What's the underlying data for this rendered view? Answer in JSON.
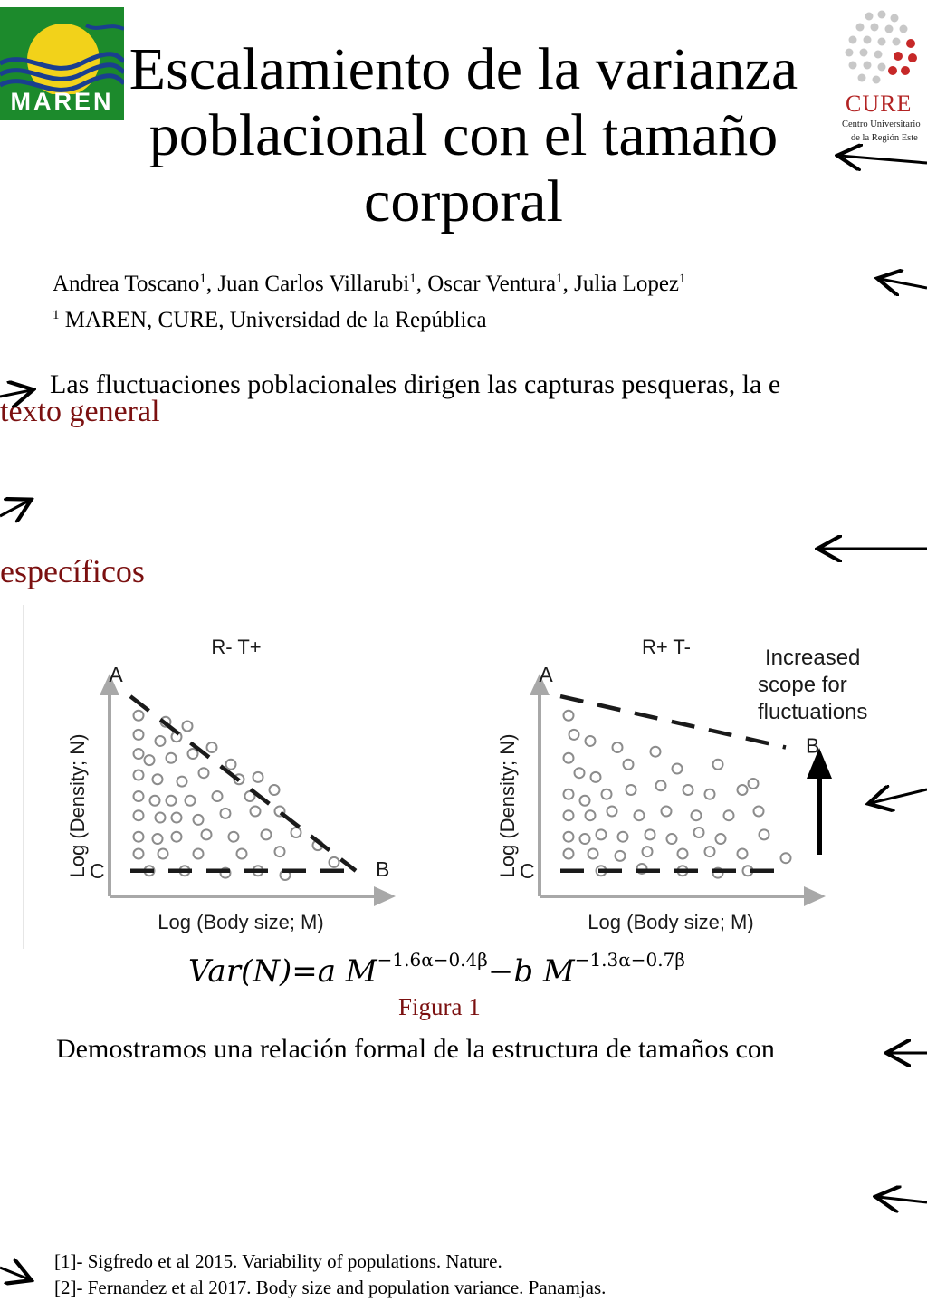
{
  "header": {
    "title": "Escalamiento de la varianza\npoblacional con el tamaño\ncorporal",
    "maren_logo_text": "MAREN",
    "cure_logo_text": "CURE",
    "cure_logo_subtitle_1": "Centro Universitario",
    "cure_logo_subtitle_2": "de la Región Este"
  },
  "authors": {
    "names": [
      "Andrea Toscano",
      "Juan Carlos Villarubi",
      "Oscar Ventura",
      "Julia Lopez"
    ],
    "affiliation_mark": "1",
    "affiliation": "MAREN, CURE, Universidad de la República"
  },
  "sections": {
    "intro_text": "Las fluctuaciones poblacionales dirigen las capturas pesqueras, la e",
    "context_heading": "texto general",
    "objectives_heading": "específicos",
    "results_text": "Demostramos una relación formal de la estructura de tamaños con"
  },
  "figure": {
    "panels": [
      {
        "title": "R- T+",
        "ylabel": "Log (Density; N)",
        "xlabel": "Log (Body size; M)",
        "labels": [
          "A",
          "B",
          "C"
        ],
        "points": [
          [
            0.08,
            0.15
          ],
          [
            0.18,
            0.18
          ],
          [
            0.26,
            0.2
          ],
          [
            0.08,
            0.24
          ],
          [
            0.16,
            0.27
          ],
          [
            0.22,
            0.25
          ],
          [
            0.35,
            0.3
          ],
          [
            0.08,
            0.33
          ],
          [
            0.12,
            0.36
          ],
          [
            0.2,
            0.35
          ],
          [
            0.28,
            0.33
          ],
          [
            0.42,
            0.38
          ],
          [
            0.08,
            0.43
          ],
          [
            0.15,
            0.45
          ],
          [
            0.24,
            0.46
          ],
          [
            0.32,
            0.42
          ],
          [
            0.45,
            0.45
          ],
          [
            0.52,
            0.44
          ],
          [
            0.08,
            0.53
          ],
          [
            0.14,
            0.55
          ],
          [
            0.2,
            0.55
          ],
          [
            0.27,
            0.55
          ],
          [
            0.37,
            0.53
          ],
          [
            0.49,
            0.53
          ],
          [
            0.58,
            0.5
          ],
          [
            0.08,
            0.62
          ],
          [
            0.16,
            0.63
          ],
          [
            0.22,
            0.63
          ],
          [
            0.3,
            0.64
          ],
          [
            0.4,
            0.61
          ],
          [
            0.51,
            0.6
          ],
          [
            0.6,
            0.6
          ],
          [
            0.08,
            0.72
          ],
          [
            0.15,
            0.73
          ],
          [
            0.22,
            0.72
          ],
          [
            0.33,
            0.71
          ],
          [
            0.43,
            0.72
          ],
          [
            0.55,
            0.71
          ],
          [
            0.66,
            0.7
          ],
          [
            0.74,
            0.76
          ],
          [
            0.08,
            0.8
          ],
          [
            0.17,
            0.8
          ],
          [
            0.3,
            0.8
          ],
          [
            0.46,
            0.8
          ],
          [
            0.6,
            0.79
          ],
          [
            0.8,
            0.84
          ],
          [
            0.12,
            0.88
          ],
          [
            0.25,
            0.88
          ],
          [
            0.4,
            0.89
          ],
          [
            0.52,
            0.88
          ],
          [
            0.62,
            0.9
          ]
        ],
        "line_top": {
          "from": [
            0.05,
            0.06
          ],
          "to": [
            0.88,
            0.88
          ]
        },
        "line_bottom": {
          "from": [
            0.05,
            0.88
          ],
          "to": [
            0.88,
            0.88
          ]
        }
      },
      {
        "title": "R+ T-",
        "ylabel": "Log (Density; N)",
        "xlabel": "Log (Body size; M)",
        "labels": [
          "A",
          "B",
          "C"
        ],
        "points": [
          [
            0.08,
            0.15
          ],
          [
            0.1,
            0.24
          ],
          [
            0.16,
            0.27
          ],
          [
            0.26,
            0.3
          ],
          [
            0.4,
            0.32
          ],
          [
            0.08,
            0.35
          ],
          [
            0.12,
            0.42
          ],
          [
            0.18,
            0.44
          ],
          [
            0.3,
            0.38
          ],
          [
            0.48,
            0.4
          ],
          [
            0.63,
            0.38
          ],
          [
            0.76,
            0.47
          ],
          [
            0.08,
            0.52
          ],
          [
            0.14,
            0.55
          ],
          [
            0.22,
            0.52
          ],
          [
            0.31,
            0.5
          ],
          [
            0.42,
            0.48
          ],
          [
            0.52,
            0.5
          ],
          [
            0.6,
            0.52
          ],
          [
            0.72,
            0.5
          ],
          [
            0.08,
            0.62
          ],
          [
            0.16,
            0.62
          ],
          [
            0.24,
            0.6
          ],
          [
            0.34,
            0.62
          ],
          [
            0.44,
            0.6
          ],
          [
            0.55,
            0.62
          ],
          [
            0.67,
            0.62
          ],
          [
            0.78,
            0.6
          ],
          [
            0.08,
            0.72
          ],
          [
            0.14,
            0.73
          ],
          [
            0.2,
            0.71
          ],
          [
            0.28,
            0.72
          ],
          [
            0.38,
            0.71
          ],
          [
            0.46,
            0.73
          ],
          [
            0.56,
            0.7
          ],
          [
            0.64,
            0.73
          ],
          [
            0.8,
            0.71
          ],
          [
            0.08,
            0.8
          ],
          [
            0.17,
            0.8
          ],
          [
            0.27,
            0.81
          ],
          [
            0.37,
            0.79
          ],
          [
            0.5,
            0.8
          ],
          [
            0.6,
            0.79
          ],
          [
            0.72,
            0.8
          ],
          [
            0.88,
            0.82
          ],
          [
            0.2,
            0.88
          ],
          [
            0.35,
            0.87
          ],
          [
            0.5,
            0.88
          ],
          [
            0.63,
            0.89
          ],
          [
            0.74,
            0.88
          ]
        ],
        "line_top": {
          "from": [
            0.05,
            0.06
          ],
          "to": [
            0.88,
            0.3
          ]
        },
        "line_bottom": {
          "from": [
            0.05,
            0.88
          ],
          "to": [
            0.88,
            0.88
          ]
        }
      }
    ],
    "annotation": "Increased\nscope for\nfluctuations",
    "formula": {
      "lhs": "Var(N)=a M",
      "exp1": "−1.6α−0.4β",
      "mid": "−b M",
      "exp2": "−1.3α−0.7β"
    },
    "caption": "Figura 1"
  },
  "references": [
    "[1]- Sigfredo et al 2015. Variability of populations. Nature.",
    "[2]- Fernandez et al 2017. Body size and population variance. Panamjas."
  ],
  "colors": {
    "accent": "#7b1010",
    "logo_green": "#1c8a2c",
    "logo_yellow": "#f2d21a",
    "cure_red": "#b22222"
  }
}
